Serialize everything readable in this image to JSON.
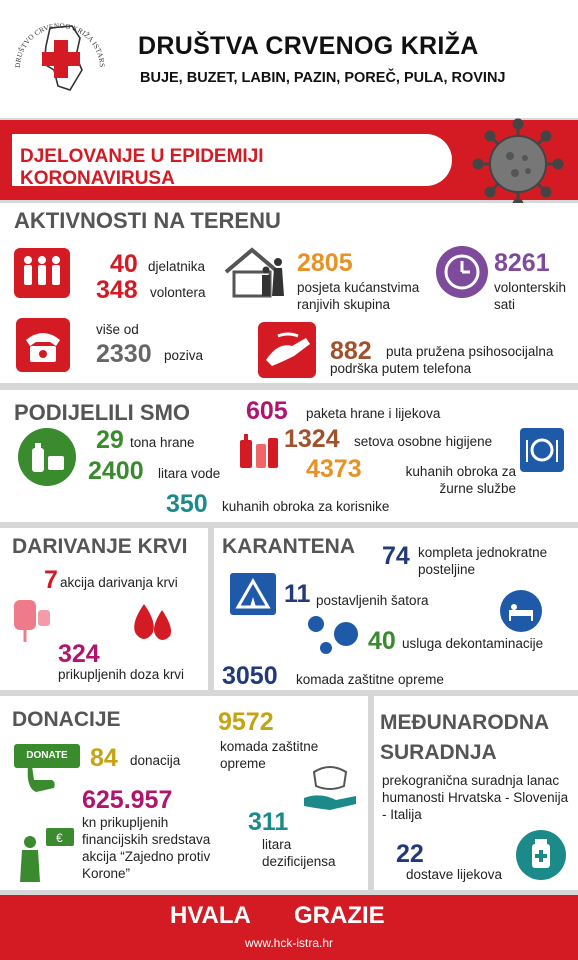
{
  "header": {
    "logo_text": "DRUŠTVO CRVENOG KRIŽA ISTARSKE ŽUPANIJE",
    "title": "DRUŠTVA CRVENOG KRIŽA",
    "towns": "BUJE, BUZET, LABIN, PAZIN, POREČ, PULA, ROVINJ"
  },
  "banner": {
    "title": "DJELOVANJE U EPIDEMIJI KORONAVIRUSA"
  },
  "field": {
    "title": "AKTIVNOSTI NA TERENU",
    "workers_num": "40",
    "workers_label": "djelatnika",
    "volunteers_num": "348",
    "volunteers_label": "volontera",
    "visits_num": "2805",
    "visits_label": "posjeta kućanstvima ranjivih skupina",
    "hours_num": "8261",
    "hours_label": "volonterskih sati",
    "calls_pre": "više od",
    "calls_num": "2330",
    "calls_label": "poziva",
    "support_num": "882",
    "support_label": "puta pružena psihosocijalna podrška putem telefona"
  },
  "shared": {
    "title": "PODIJELILI SMO",
    "food_num": "29",
    "food_label": "tona hrane",
    "water_num": "2400",
    "water_label": "litara vode",
    "packages_num": "605",
    "packages_label": "paketa hrane i lijekova",
    "hygiene_num": "1324",
    "hygiene_label": "setova osobne higijene",
    "meals_num": "4373",
    "meals_label": "kuhanih obroka za žurne službe",
    "users_num": "350",
    "users_label": "kuhanih obroka za korisnike"
  },
  "blood": {
    "title": "DARIVANJE KRVI",
    "actions_num": "7",
    "actions_label": "akcija darivanja krvi",
    "doses_num": "324",
    "doses_label": "prikupljenih doza krvi"
  },
  "quarantine": {
    "title": "KARANTENA",
    "bedding_num": "74",
    "bedding_label": "kompleta jednokratne posteljine",
    "tents_num": "11",
    "tents_label": "postavljenih šatora",
    "decon_num": "40",
    "decon_label": "usluga dekontaminacije",
    "equip_num": "3050",
    "equip_label": "komada zaštitne opreme"
  },
  "donations": {
    "title": "DONACIJE",
    "donate_tag": "DONATE",
    "count_num": "84",
    "count_label": "donacija",
    "amount_num": "625.957",
    "amount_label": "kn prikupljenih financijskih sredstava akcija “Zajedno protiv Korone”",
    "gear_num": "9572",
    "gear_label": "komada zaštitne opreme",
    "disinf_num": "311",
    "disinf_label": "litara dezificijensa"
  },
  "international": {
    "title": "MEĐUNARODNA SURADNJA",
    "desc": "prekogranična suradnja lanac humanosti Hrvatska - Slovenija - Italija",
    "deliv_num": "22",
    "deliv_label": "dostave lijekova"
  },
  "footer": {
    "thanks_hr": "HVALA",
    "thanks_it": "GRAZIE",
    "website": "www.hck-istra.hr"
  },
  "colors": {
    "red": "#d41b24",
    "gray_title": "#555555",
    "panel_gap": "#d7d7d7"
  }
}
